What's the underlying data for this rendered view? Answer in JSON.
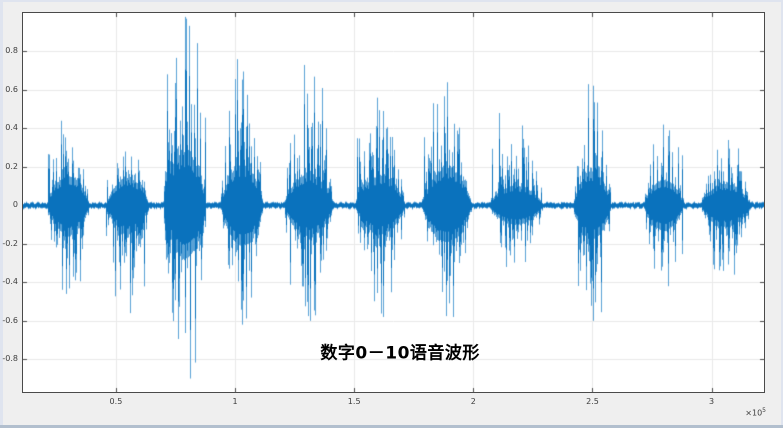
{
  "window": {
    "background": "#efefef",
    "edge_color": "#dfe4ef",
    "bottom_strip_color": "#b2bfce"
  },
  "chart_data": {
    "type": "line",
    "title": "数字0－10语音波形",
    "description": "Speech waveform of spoken digits 0 to 10, amplitude vs sample index",
    "xlabel": "",
    "ylabel": "",
    "grid": true,
    "legend": "none",
    "plot_bg": "#ffffff",
    "line_color": "#0a72bd",
    "line_color_light": "#5aa2d6",
    "axis_color": "#4a4a4a",
    "grid_color": "#e9e9e9",
    "tick_label_color": "#3d3d3d",
    "xlim": [
      0.11,
      3.22
    ],
    "ylim": [
      -0.97,
      1.0
    ],
    "x_tick_values": [
      0.5,
      1,
      1.5,
      2,
      2.5,
      3
    ],
    "x_ticks": [
      "0.5",
      "1",
      "1.5",
      "2",
      "2.5",
      "3"
    ],
    "y_tick_values": [
      0.8,
      0.6,
      0.4,
      0.2,
      0,
      -0.2,
      -0.4,
      -0.6,
      -0.8
    ],
    "y_ticks": [
      "0.8",
      "0.6",
      "0.4",
      "0.2",
      "0",
      "-0.2",
      "-0.4",
      "-0.6",
      "-0.8"
    ],
    "x_scale_label": {
      "base": "×10",
      "exp": "5"
    },
    "noise_floor": 0.013,
    "x_units": "samples (×10^5)",
    "bursts": [
      {
        "digit": "0",
        "center": 0.3,
        "width": 0.18,
        "peak_pos": 0.44,
        "peak_neg": -0.46,
        "body": 0.3,
        "spike_t": 0.35
      },
      {
        "digit": "1",
        "center": 0.55,
        "width": 0.18,
        "peak_pos": 0.28,
        "peak_neg": -0.56,
        "body": 0.28,
        "spike_t": 0.45
      },
      {
        "digit": "2",
        "center": 0.79,
        "width": 0.18,
        "peak_pos": 0.98,
        "peak_neg": -0.9,
        "body": 0.55,
        "spike_t": 0.5
      },
      {
        "digit": "3",
        "center": 1.03,
        "width": 0.18,
        "peak_pos": 0.76,
        "peak_neg": -0.62,
        "body": 0.42,
        "spike_t": 0.38
      },
      {
        "digit": "4",
        "center": 1.31,
        "width": 0.21,
        "peak_pos": 0.73,
        "peak_neg": -0.6,
        "body": 0.32,
        "spike_t": 0.42
      },
      {
        "digit": "5",
        "center": 1.61,
        "width": 0.21,
        "peak_pos": 0.56,
        "peak_neg": -0.58,
        "body": 0.3,
        "spike_t": 0.45
      },
      {
        "digit": "6",
        "center": 1.89,
        "width": 0.21,
        "peak_pos": 0.64,
        "peak_neg": -0.58,
        "body": 0.38,
        "spike_t": 0.5
      },
      {
        "digit": "7",
        "center": 2.18,
        "width": 0.23,
        "peak_pos": 0.48,
        "peak_neg": -0.32,
        "body": 0.2,
        "spike_t": 0.2
      },
      {
        "digit": "8",
        "center": 2.5,
        "width": 0.16,
        "peak_pos": 0.63,
        "peak_neg": -0.6,
        "body": 0.35,
        "spike_t": 0.4
      },
      {
        "digit": "9",
        "center": 2.8,
        "width": 0.17,
        "peak_pos": 0.42,
        "peak_neg": -0.42,
        "body": 0.26,
        "spike_t": 0.5
      },
      {
        "digit": "10",
        "center": 3.06,
        "width": 0.21,
        "peak_pos": 0.34,
        "peak_neg": -0.36,
        "body": 0.22,
        "spike_t": 0.55
      }
    ]
  }
}
